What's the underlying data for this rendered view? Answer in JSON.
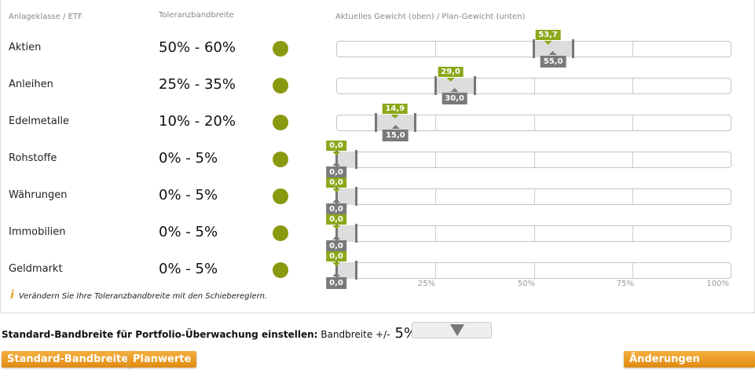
{
  "headers": {
    "asset": "Anlageklasse / ETF",
    "tolerance": "Toleranzbandbreite",
    "weights": "Aktuelles Gewicht (oben) / Plan-Gewicht (unten)"
  },
  "rows": [
    {
      "name": "Aktien",
      "range": "50% - 60%",
      "min": 50,
      "max": 60,
      "actual": 53.7,
      "actual_label": "53,7",
      "plan": 55,
      "plan_label": "55,0"
    },
    {
      "name": "Anleihen",
      "range": "25% - 35%",
      "min": 25,
      "max": 35,
      "actual": 29,
      "actual_label": "29,0",
      "plan": 30,
      "plan_label": "30,0"
    },
    {
      "name": "Edelmetalle",
      "range": "10% - 20%",
      "min": 10,
      "max": 20,
      "actual": 14.9,
      "actual_label": "14,9",
      "plan": 15,
      "plan_label": "15,0"
    },
    {
      "name": "Rohstoffe",
      "range": "0% - 5%",
      "min": 0,
      "max": 5,
      "actual": 0,
      "actual_label": "0,0",
      "plan": 0,
      "plan_label": "0,0"
    },
    {
      "name": "Währungen",
      "range": "0% - 5%",
      "min": 0,
      "max": 5,
      "actual": 0,
      "actual_label": "0,0",
      "plan": 0,
      "plan_label": "0,0"
    },
    {
      "name": "Immobilien",
      "range": "0% - 5%",
      "min": 0,
      "max": 5,
      "actual": 0,
      "actual_label": "0,0",
      "plan": 0,
      "plan_label": "0,0"
    },
    {
      "name": "Geldmarkt",
      "range": "0% - 5%",
      "min": 0,
      "max": 5,
      "actual": 0,
      "actual_label": "0,0",
      "plan": 0,
      "plan_label": "0,0"
    }
  ],
  "ticks": [
    "25%",
    "50%",
    "75%",
    "100%"
  ],
  "hint": "Verändern Sie Ihre Toleranzbandbreite mit den Schiebereglern.",
  "standard": {
    "label": "Standard-Bandbreite für Portfolio-Überwachung einstellen:",
    "sub": "Bandbreite +/-",
    "value": "5%"
  },
  "buttons": {
    "standard": "Standard-Bandbreite",
    "plan": "Planwerte",
    "save": "Änderungen speichern"
  },
  "colors": {
    "status": "#8a9a10",
    "actual": "#8aa81a",
    "plan": "#7a7a7a",
    "button": "#e8961a"
  }
}
